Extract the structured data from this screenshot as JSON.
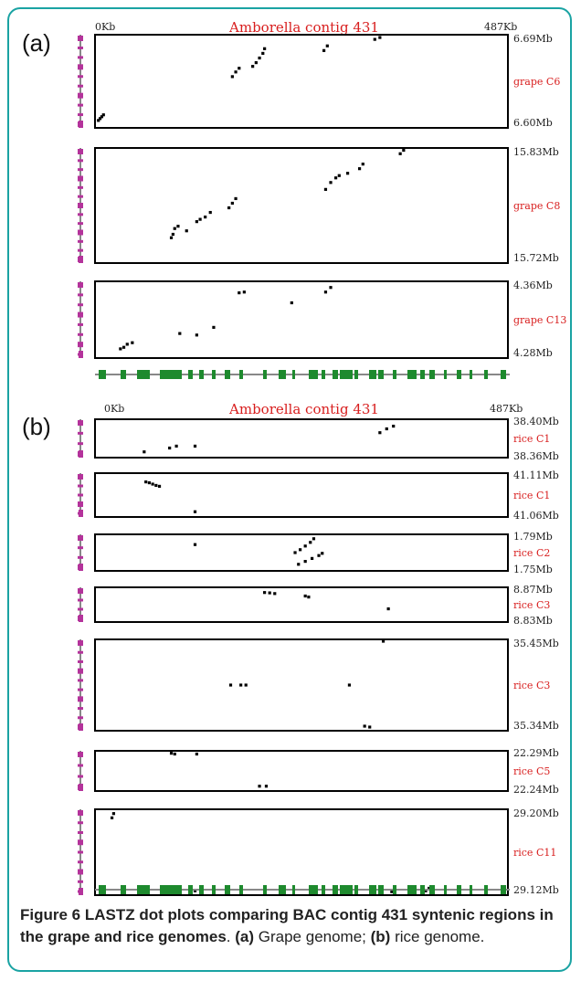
{
  "colors": {
    "frame": "#1aa3a3",
    "title": "#d81e1e",
    "label": "#d81e1e",
    "magenta": "#b4339b",
    "green": "#1e8a2e",
    "dot": "#000000"
  },
  "panels": {
    "a": {
      "letter": "(a)",
      "x_start": "0Kb",
      "x_end": "487Kb",
      "title": "Amborella contig 431"
    },
    "b": {
      "letter": "(b)",
      "x_start": "0Kb",
      "x_end": "487Kb",
      "title": "Amborella contig 431"
    }
  },
  "caption": {
    "fig_label": "Figure 6",
    "bold_text": "LASTZ dot plots comparing BAC contig 431 syntenic regions in the grape and rice genomes",
    "a_label": "(a)",
    "a_text": "Grape genome;",
    "b_label": "(b)",
    "b_text": "rice genome."
  },
  "chart_data": [
    {
      "type": "scatter",
      "panel": "a",
      "chromosome": "grape C6",
      "y_top": "6.69Mb",
      "y_bottom": "6.60Mb",
      "xlim": [
        0,
        487
      ],
      "ylim": [
        0,
        1
      ],
      "points": [
        [
          4,
          0.08
        ],
        [
          6,
          0.1
        ],
        [
          8,
          0.12
        ],
        [
          10,
          0.14
        ],
        [
          162,
          0.55
        ],
        [
          166,
          0.6
        ],
        [
          170,
          0.64
        ],
        [
          186,
          0.66
        ],
        [
          190,
          0.7
        ],
        [
          194,
          0.75
        ],
        [
          198,
          0.8
        ],
        [
          200,
          0.85
        ],
        [
          270,
          0.83
        ],
        [
          274,
          0.88
        ],
        [
          330,
          0.95
        ],
        [
          336,
          0.97
        ]
      ]
    },
    {
      "type": "scatter",
      "panel": "a",
      "chromosome": "grape C8",
      "y_top": "15.83Mb",
      "y_bottom": "15.72Mb",
      "xlim": [
        0,
        487
      ],
      "ylim": [
        0,
        1
      ],
      "points": [
        [
          90,
          0.22
        ],
        [
          92,
          0.25
        ],
        [
          94,
          0.3
        ],
        [
          98,
          0.32
        ],
        [
          108,
          0.28
        ],
        [
          120,
          0.36
        ],
        [
          124,
          0.38
        ],
        [
          130,
          0.4
        ],
        [
          136,
          0.44
        ],
        [
          158,
          0.48
        ],
        [
          162,
          0.52
        ],
        [
          166,
          0.56
        ],
        [
          272,
          0.64
        ],
        [
          278,
          0.7
        ],
        [
          284,
          0.74
        ],
        [
          288,
          0.76
        ],
        [
          298,
          0.78
        ],
        [
          312,
          0.82
        ],
        [
          316,
          0.86
        ],
        [
          360,
          0.95
        ],
        [
          364,
          0.98
        ]
      ]
    },
    {
      "type": "scatter",
      "panel": "a",
      "chromosome": "grape C13",
      "y_top": "4.36Mb",
      "y_bottom": "4.28Mb",
      "xlim": [
        0,
        487
      ],
      "ylim": [
        0,
        1
      ],
      "points": [
        [
          30,
          0.12
        ],
        [
          34,
          0.14
        ],
        [
          38,
          0.18
        ],
        [
          44,
          0.2
        ],
        [
          100,
          0.32
        ],
        [
          120,
          0.3
        ],
        [
          140,
          0.4
        ],
        [
          170,
          0.85
        ],
        [
          176,
          0.86
        ],
        [
          232,
          0.72
        ],
        [
          272,
          0.86
        ],
        [
          278,
          0.92
        ]
      ]
    },
    {
      "type": "scatter",
      "panel": "b",
      "chromosome": "rice C1",
      "y_top": "38.40Mb",
      "y_bottom": "38.36Mb",
      "xlim": [
        0,
        487
      ],
      "ylim": [
        0,
        1
      ],
      "points": [
        [
          58,
          0.15
        ],
        [
          88,
          0.25
        ],
        [
          96,
          0.3
        ],
        [
          118,
          0.3
        ],
        [
          336,
          0.65
        ],
        [
          344,
          0.75
        ],
        [
          352,
          0.82
        ]
      ]
    },
    {
      "type": "scatter",
      "panel": "b",
      "chromosome": "rice C1",
      "y_top": "41.11Mb",
      "y_bottom": "41.06Mb",
      "xlim": [
        0,
        487
      ],
      "ylim": [
        0,
        1
      ],
      "points": [
        [
          60,
          0.8
        ],
        [
          64,
          0.78
        ],
        [
          68,
          0.75
        ],
        [
          72,
          0.72
        ],
        [
          76,
          0.7
        ],
        [
          118,
          0.12
        ]
      ]
    },
    {
      "type": "scatter",
      "panel": "b",
      "chromosome": "rice C2",
      "y_top": "1.79Mb",
      "y_bottom": "1.75Mb",
      "xlim": [
        0,
        487
      ],
      "ylim": [
        0,
        1
      ],
      "points": [
        [
          118,
          0.72
        ],
        [
          236,
          0.5
        ],
        [
          242,
          0.58
        ],
        [
          248,
          0.68
        ],
        [
          254,
          0.78
        ],
        [
          258,
          0.88
        ],
        [
          240,
          0.18
        ],
        [
          248,
          0.26
        ],
        [
          256,
          0.34
        ],
        [
          264,
          0.42
        ],
        [
          268,
          0.48
        ]
      ]
    },
    {
      "type": "scatter",
      "panel": "b",
      "chromosome": "rice C3",
      "y_top": "8.87Mb",
      "y_bottom": "8.83Mb",
      "xlim": [
        0,
        487
      ],
      "ylim": [
        0,
        1
      ],
      "points": [
        [
          200,
          0.85
        ],
        [
          206,
          0.84
        ],
        [
          212,
          0.82
        ],
        [
          248,
          0.75
        ],
        [
          252,
          0.72
        ],
        [
          346,
          0.38
        ]
      ]
    },
    {
      "type": "scatter",
      "panel": "b",
      "chromosome": "rice C3",
      "y_top": "35.45Mb",
      "y_bottom": "35.34Mb",
      "xlim": [
        0,
        487
      ],
      "ylim": [
        0,
        1
      ],
      "points": [
        [
          160,
          0.5
        ],
        [
          172,
          0.5
        ],
        [
          178,
          0.5
        ],
        [
          300,
          0.5
        ],
        [
          318,
          0.05
        ],
        [
          324,
          0.04
        ],
        [
          340,
          0.98
        ]
      ]
    },
    {
      "type": "scatter",
      "panel": "b",
      "chromosome": "rice C5",
      "y_top": "22.29Mb",
      "y_bottom": "22.24Mb",
      "xlim": [
        0,
        487
      ],
      "ylim": [
        0,
        1
      ],
      "points": [
        [
          90,
          0.94
        ],
        [
          94,
          0.92
        ],
        [
          120,
          0.92
        ],
        [
          194,
          0.12
        ],
        [
          202,
          0.12
        ]
      ]
    },
    {
      "type": "scatter",
      "panel": "b",
      "chromosome": "rice C11",
      "y_top": "29.20Mb",
      "y_bottom": "29.12Mb",
      "xlim": [
        0,
        487
      ],
      "ylim": [
        0,
        1
      ],
      "points": [
        [
          20,
          0.9
        ],
        [
          22,
          0.95
        ],
        [
          118,
          0.05
        ],
        [
          350,
          0.04
        ],
        [
          390,
          0.05
        ],
        [
          394,
          0.08
        ]
      ]
    }
  ]
}
